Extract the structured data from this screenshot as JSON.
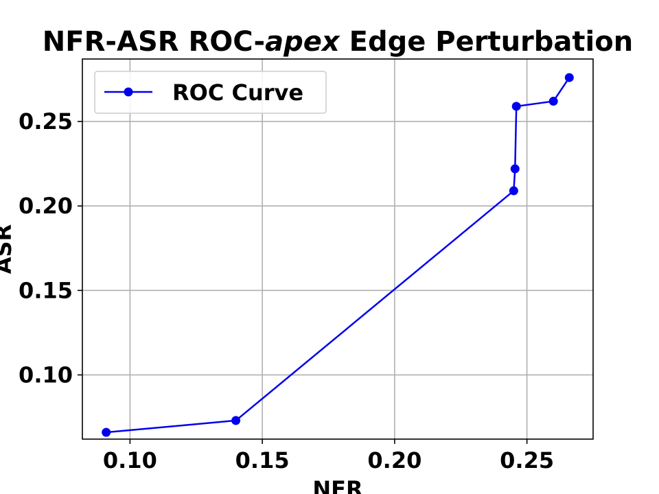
{
  "chart_data": {
    "type": "line",
    "title": {
      "prefix": "NFR-ASR ROC-",
      "emphasis": "apex",
      "suffix": " Edge Perturbation"
    },
    "xlabel": "NFR",
    "ylabel": "ASR",
    "xlim": [
      0.082,
      0.275
    ],
    "ylim": [
      0.062,
      0.287
    ],
    "x_ticks": [
      0.1,
      0.15,
      0.2,
      0.25
    ],
    "x_tick_labels": [
      "0.10",
      "0.15",
      "0.20",
      "0.25"
    ],
    "y_ticks": [
      0.1,
      0.15,
      0.2,
      0.25
    ],
    "y_tick_labels": [
      "0.10",
      "0.15",
      "0.20",
      "0.25"
    ],
    "grid": true,
    "legend_position": "upper-left",
    "series": [
      {
        "name": "ROC Curve",
        "color": "#0000ee",
        "marker": "circle",
        "x": [
          0.091,
          0.14,
          0.245,
          0.2455,
          0.246,
          0.26,
          0.266
        ],
        "y": [
          0.066,
          0.073,
          0.209,
          0.222,
          0.259,
          0.262,
          0.276
        ]
      }
    ]
  }
}
